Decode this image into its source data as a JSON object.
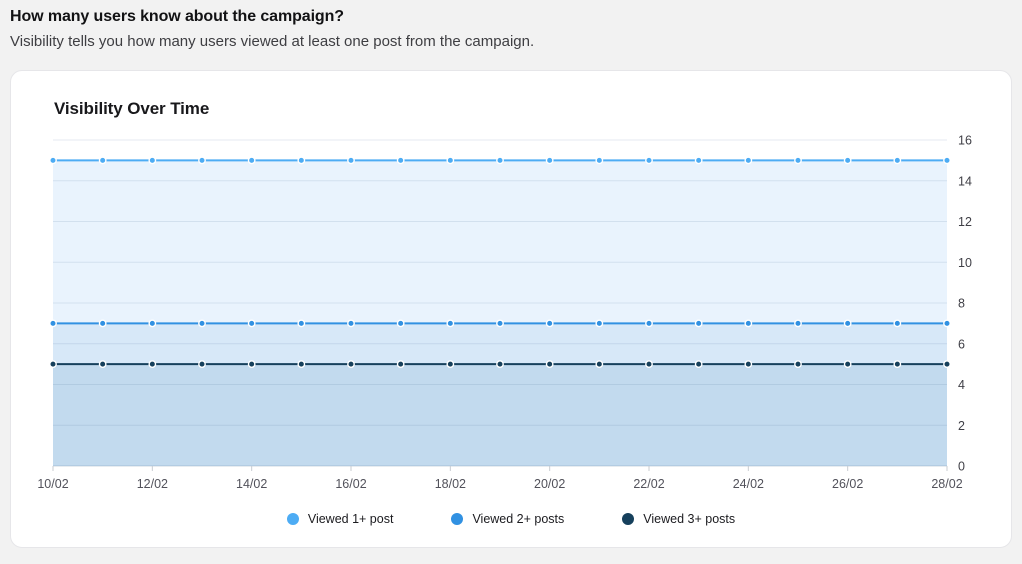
{
  "header": {
    "title": "How many users know about the campaign?",
    "subtitle": "Visibility tells you how many users viewed at least one post from the campaign."
  },
  "card": {
    "chart_title": "Visibility Over Time"
  },
  "chart_data": {
    "type": "line",
    "title": "Visibility Over Time",
    "xlabel": "",
    "ylabel": "",
    "x": [
      "10/02",
      "11/02",
      "12/02",
      "13/02",
      "14/02",
      "15/02",
      "16/02",
      "17/02",
      "18/02",
      "19/02",
      "20/02",
      "21/02",
      "22/02",
      "23/02",
      "24/02",
      "25/02",
      "26/02",
      "27/02",
      "28/02"
    ],
    "x_tick_labels": [
      "10/02",
      "12/02",
      "14/02",
      "16/02",
      "18/02",
      "20/02",
      "22/02",
      "24/02",
      "26/02",
      "28/02"
    ],
    "x_tick_every": 2,
    "ylim": [
      0,
      16
    ],
    "y_ticks": [
      0,
      2,
      4,
      6,
      8,
      10,
      12,
      14,
      16
    ],
    "y_axis_side": "right",
    "grid": true,
    "legend_position": "bottom",
    "series": [
      {
        "name": "Viewed 1+ post",
        "color": "#4DACF4",
        "area_color": "#E9F3FD",
        "values": [
          15,
          15,
          15,
          15,
          15,
          15,
          15,
          15,
          15,
          15,
          15,
          15,
          15,
          15,
          15,
          15,
          15,
          15,
          15
        ]
      },
      {
        "name": "Viewed 2+ posts",
        "color": "#3191E2",
        "area_color": "#D7E8F8",
        "values": [
          7,
          7,
          7,
          7,
          7,
          7,
          7,
          7,
          7,
          7,
          7,
          7,
          7,
          7,
          7,
          7,
          7,
          7,
          7
        ]
      },
      {
        "name": "Viewed 3+ posts",
        "color": "#16405C",
        "area_color": "#C2DAEE",
        "values": [
          5,
          5,
          5,
          5,
          5,
          5,
          5,
          5,
          5,
          5,
          5,
          5,
          5,
          5,
          5,
          5,
          5,
          5,
          5
        ]
      }
    ]
  }
}
